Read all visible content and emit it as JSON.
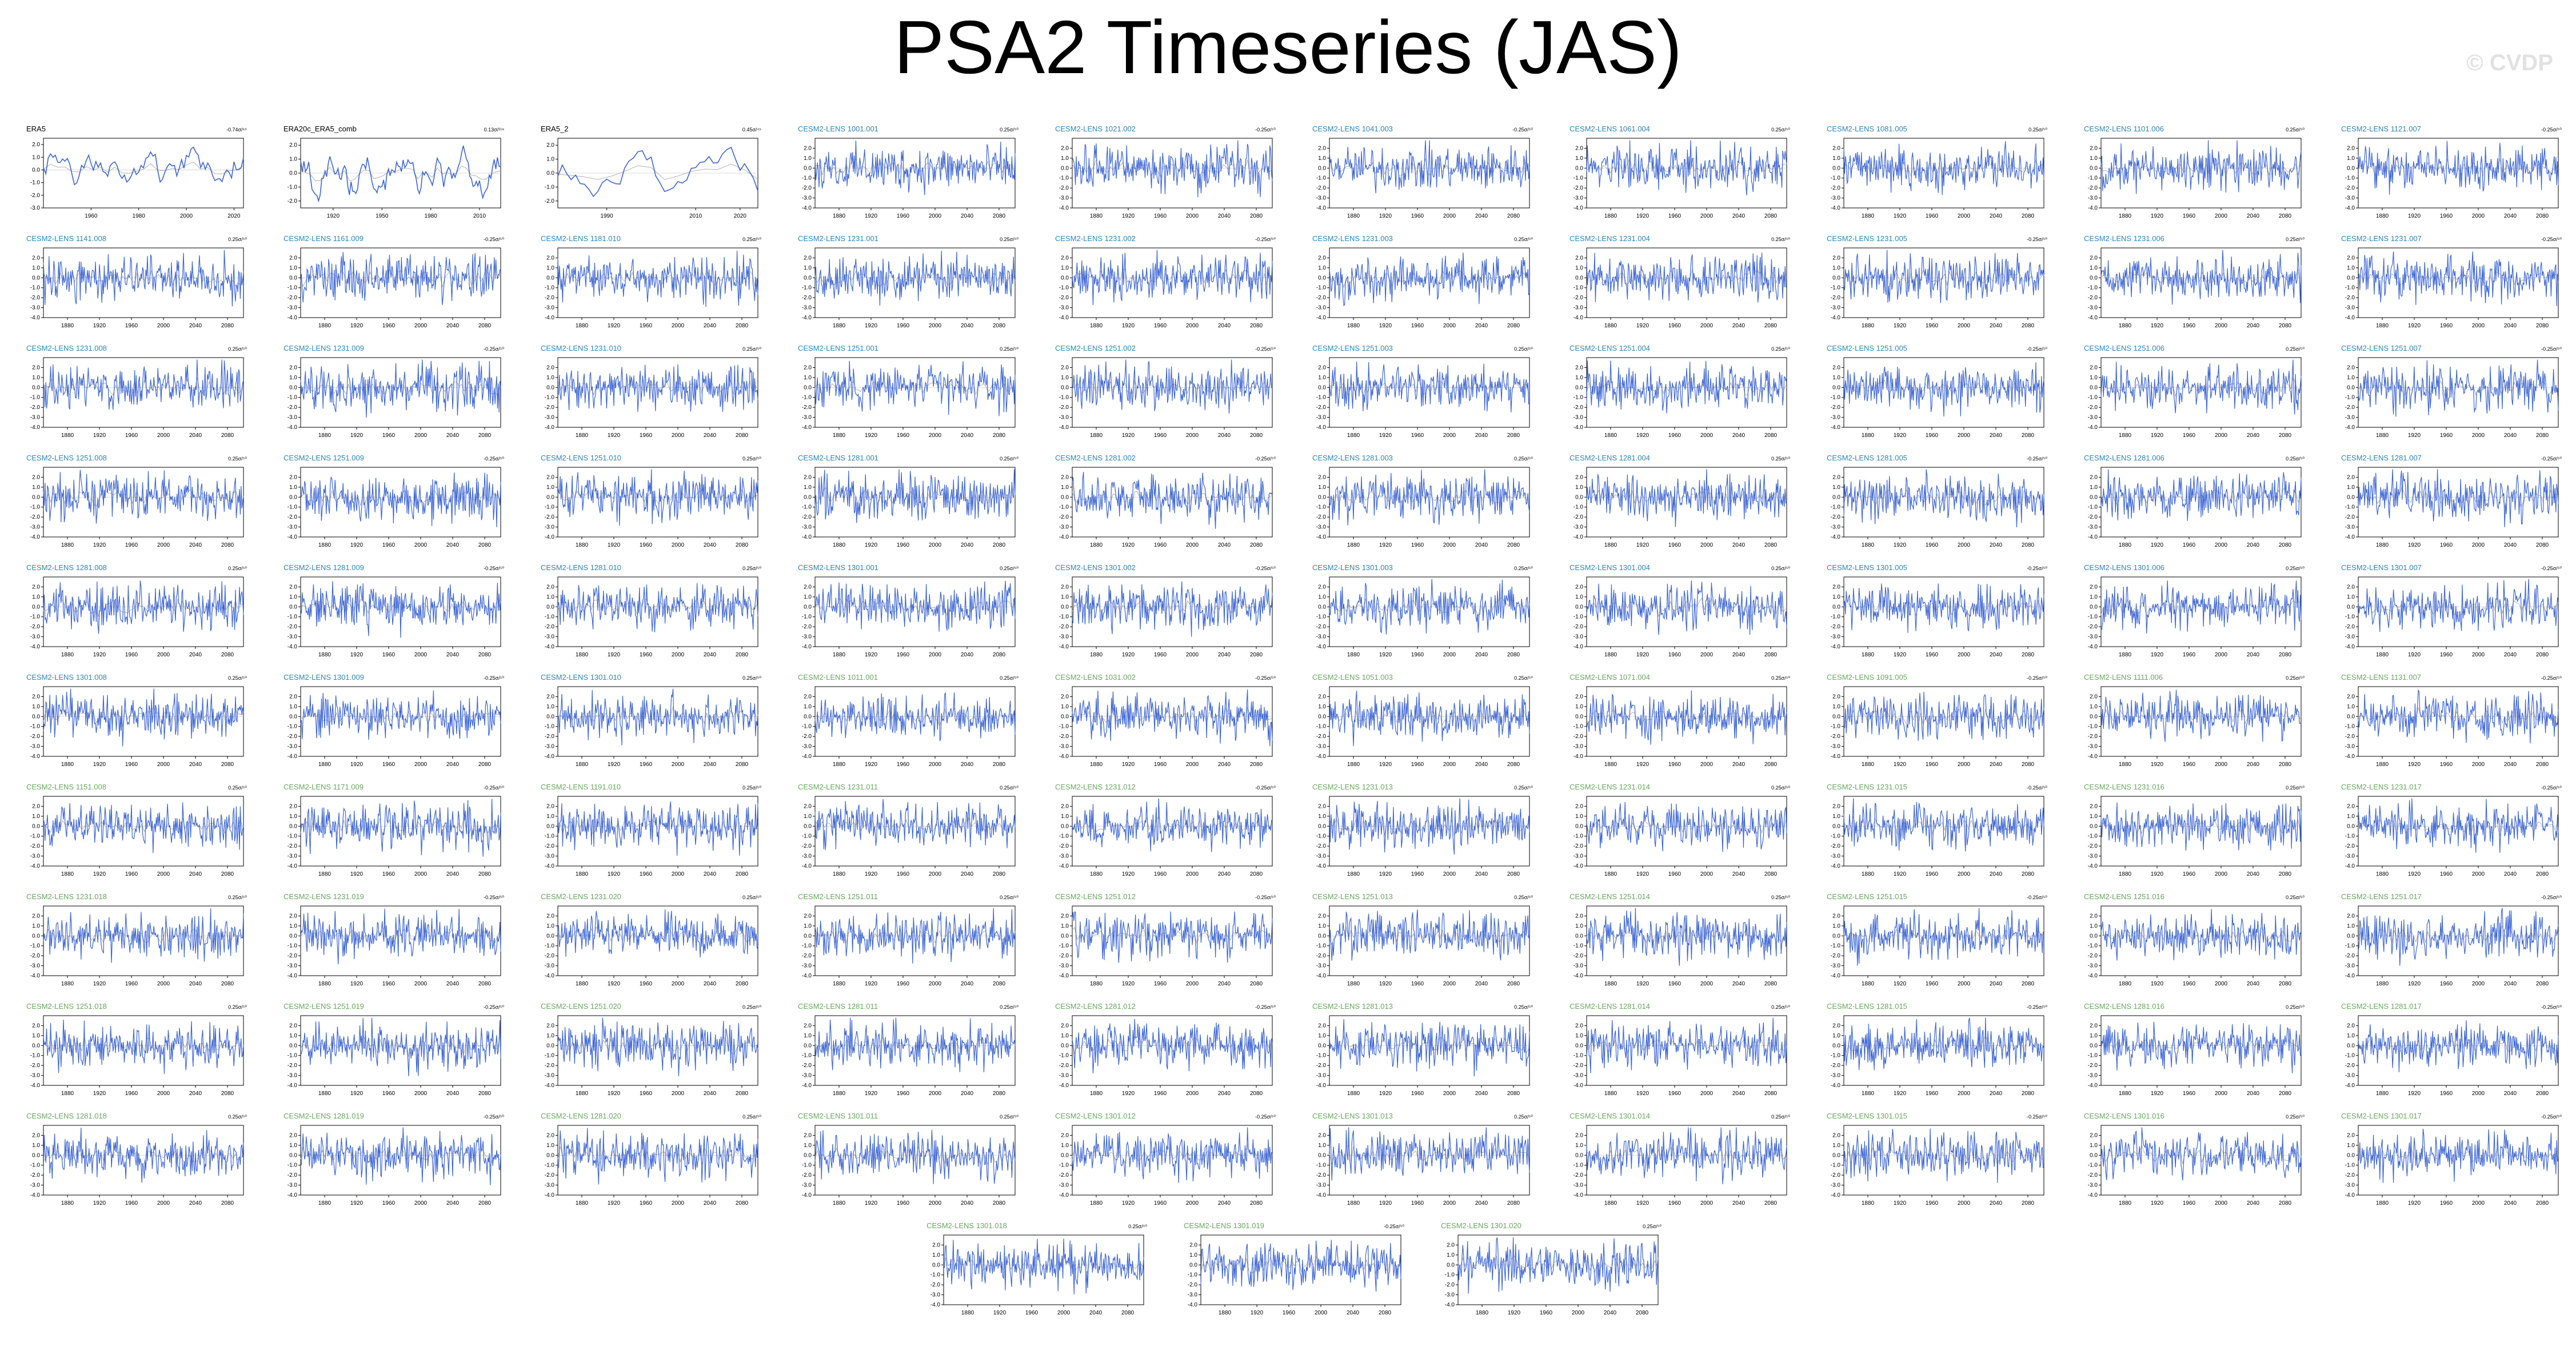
{
  "title": "PSA2 Timeseries (JAS)",
  "watermark": "© CVDP",
  "colors": {
    "series": "#3d66d6",
    "trend": "#aaaaaa",
    "obs_title": "#000000",
    "member_title_blue": "#2e86b8",
    "member_title_green": "#6aa860"
  },
  "chart_data": [
    {
      "type": "line",
      "title": "ERA5",
      "trend_label": "-0.74σ/⁶⁵",
      "title_color": "obs",
      "x_range": [
        1940,
        2024
      ],
      "ylim": [
        -3,
        2.5
      ],
      "xticks": [
        1960,
        1980,
        2000,
        2020
      ],
      "yticks": [
        "2.0",
        "1.0",
        "0.0",
        "-1.0",
        "-2.0",
        "-3.0"
      ],
      "n_points": 85,
      "smooth": true,
      "seed": 1
    },
    {
      "type": "line",
      "title": "ERA20c_ERA5_comb",
      "trend_label": "0.13σ/¹¹⁸",
      "title_color": "obs",
      "x_range": [
        1900,
        2023
      ],
      "ylim": [
        -2.5,
        2.5
      ],
      "xticks": [
        1920,
        1950,
        1980,
        2010
      ],
      "yticks": [
        "2.0",
        "1.0",
        "0.0",
        "-1.0",
        "-2.0"
      ],
      "n_points": 124,
      "smooth": true,
      "seed": 2
    },
    {
      "type": "line",
      "title": "ERA5_2",
      "trend_label": "0.45σ/⁴⁵",
      "title_color": "obs",
      "x_range": [
        1979,
        2024
      ],
      "ylim": [
        -2.5,
        2.5
      ],
      "xticks": [
        1990,
        2010,
        2020
      ],
      "yticks": [
        "2.0",
        "1.0",
        "0.0",
        "-1.0",
        "-2.0"
      ],
      "n_points": 46,
      "smooth": true,
      "seed": 3
    },
    {
      "title": "CESM2-LENS 1001.001",
      "trend_label": "0.25σ/⁵⁰",
      "title_color": "blue",
      "seed": 4
    },
    {
      "title": "CESM2-LENS 1021.002",
      "trend_label": "-0.25σ/⁵⁰",
      "title_color": "blue",
      "seed": 5
    },
    {
      "title": "CESM2-LENS 1041.003",
      "trend_label": "-0.25σ/⁵⁰",
      "title_color": "blue",
      "seed": 6
    },
    {
      "title": "CESM2-LENS 1061.004",
      "trend_label": "0.25σ/⁵⁰",
      "title_color": "blue",
      "seed": 7
    },
    {
      "title": "CESM2-LENS 1081.005",
      "trend_label": "0.25σ/⁵⁰",
      "title_color": "blue",
      "seed": 8
    },
    {
      "title": "CESM2-LENS 1101.006",
      "trend_label": "0.25σ/⁵⁰",
      "title_color": "blue",
      "seed": 9
    },
    {
      "title": "CESM2-LENS 1121.007",
      "trend_label": "-0.25σ/⁵⁰",
      "title_color": "blue",
      "seed": 10
    },
    {
      "title": "CESM2-LENS 1141.008",
      "trend_label": "0.25σ/⁵⁰",
      "title_color": "blue",
      "seed": 11
    },
    {
      "title": "CESM2-LENS 1161.009",
      "trend_label": "-0.25σ/⁵⁰",
      "title_color": "blue",
      "seed": 12
    },
    {
      "title": "CESM2-LENS 1181.010",
      "trend_label": "0.25σ/⁵⁰",
      "title_color": "blue",
      "seed": 13
    },
    {
      "title": "CESM2-LENS 1231.001",
      "trend_label": "0.25σ/⁵⁰",
      "title_color": "blue",
      "seed": 14
    },
    {
      "title": "CESM2-LENS 1231.002",
      "trend_label": "-0.25σ/⁵⁰",
      "title_color": "blue",
      "seed": 15
    },
    {
      "title": "CESM2-LENS 1231.003",
      "trend_label": "0.25σ/⁵⁰",
      "title_color": "blue",
      "seed": 16
    },
    {
      "title": "CESM2-LENS 1231.004",
      "trend_label": "0.25σ/⁵⁰",
      "title_color": "blue",
      "seed": 17
    },
    {
      "title": "CESM2-LENS 1231.005",
      "trend_label": "-0.25σ/⁵⁰",
      "title_color": "blue",
      "seed": 18
    },
    {
      "title": "CESM2-LENS 1231.006",
      "trend_label": "0.25σ/⁵⁰",
      "title_color": "blue",
      "seed": 19
    },
    {
      "title": "CESM2-LENS 1231.007",
      "trend_label": "-0.25σ/⁵⁰",
      "title_color": "blue",
      "seed": 20
    },
    {
      "title": "CESM2-LENS 1231.008",
      "trend_label": "0.25σ/⁵⁰",
      "title_color": "blue",
      "seed": 21
    },
    {
      "title": "CESM2-LENS 1231.009",
      "trend_label": "-0.25σ/⁵⁰",
      "title_color": "blue",
      "seed": 22
    },
    {
      "title": "CESM2-LENS 1231.010",
      "trend_label": "0.25σ/⁵⁰",
      "title_color": "blue",
      "seed": 23
    },
    {
      "title": "CESM2-LENS 1251.001",
      "trend_label": "0.25σ/⁵⁰",
      "title_color": "blue",
      "seed": 24
    },
    {
      "title": "CESM2-LENS 1251.002",
      "trend_label": "-0.25σ/⁵⁰",
      "title_color": "blue",
      "seed": 25
    },
    {
      "title": "CESM2-LENS 1251.003",
      "trend_label": "0.25σ/⁵⁰",
      "title_color": "blue",
      "seed": 26
    },
    {
      "title": "CESM2-LENS 1251.004",
      "trend_label": "0.25σ/⁵⁰",
      "title_color": "blue",
      "seed": 27
    },
    {
      "title": "CESM2-LENS 1251.005",
      "trend_label": "-0.25σ/⁵⁰",
      "title_color": "blue",
      "seed": 28
    },
    {
      "title": "CESM2-LENS 1251.006",
      "trend_label": "0.25σ/⁵⁰",
      "title_color": "blue",
      "seed": 29
    },
    {
      "title": "CESM2-LENS 1251.007",
      "trend_label": "-0.25σ/⁵⁰",
      "title_color": "blue",
      "seed": 30
    },
    {
      "title": "CESM2-LENS 1251.008",
      "trend_label": "0.25σ/⁵⁰",
      "title_color": "blue",
      "seed": 31
    },
    {
      "title": "CESM2-LENS 1251.009",
      "trend_label": "-0.25σ/⁵⁰",
      "title_color": "blue",
      "seed": 32
    },
    {
      "title": "CESM2-LENS 1251.010",
      "trend_label": "0.25σ/⁵⁰",
      "title_color": "blue",
      "seed": 33
    },
    {
      "title": "CESM2-LENS 1281.001",
      "trend_label": "0.25σ/⁵⁰",
      "title_color": "blue",
      "seed": 34
    },
    {
      "title": "CESM2-LENS 1281.002",
      "trend_label": "-0.25σ/⁵⁰",
      "title_color": "blue",
      "seed": 35
    },
    {
      "title": "CESM2-LENS 1281.003",
      "trend_label": "0.25σ/⁵⁰",
      "title_color": "blue",
      "seed": 36
    },
    {
      "title": "CESM2-LENS 1281.004",
      "trend_label": "0.25σ/⁵⁰",
      "title_color": "blue",
      "seed": 37
    },
    {
      "title": "CESM2-LENS 1281.005",
      "trend_label": "-0.25σ/⁵⁰",
      "title_color": "blue",
      "seed": 38
    },
    {
      "title": "CESM2-LENS 1281.006",
      "trend_label": "0.25σ/⁵⁰",
      "title_color": "blue",
      "seed": 39
    },
    {
      "title": "CESM2-LENS 1281.007",
      "trend_label": "-0.25σ/⁵⁰",
      "title_color": "blue",
      "seed": 40
    },
    {
      "title": "CESM2-LENS 1281.008",
      "trend_label": "0.25σ/⁵⁰",
      "title_color": "blue",
      "seed": 41
    },
    {
      "title": "CESM2-LENS 1281.009",
      "trend_label": "-0.25σ/⁵⁰",
      "title_color": "blue",
      "seed": 42
    },
    {
      "title": "CESM2-LENS 1281.010",
      "trend_label": "0.25σ/⁵⁰",
      "title_color": "blue",
      "seed": 43
    },
    {
      "title": "CESM2-LENS 1301.001",
      "trend_label": "0.25σ/⁵⁰",
      "title_color": "blue",
      "seed": 44
    },
    {
      "title": "CESM2-LENS 1301.002",
      "trend_label": "-0.25σ/⁵⁰",
      "title_color": "blue",
      "seed": 45
    },
    {
      "title": "CESM2-LENS 1301.003",
      "trend_label": "0.25σ/⁵⁰",
      "title_color": "blue",
      "seed": 46
    },
    {
      "title": "CESM2-LENS 1301.004",
      "trend_label": "0.25σ/⁵⁰",
      "title_color": "blue",
      "seed": 47
    },
    {
      "title": "CESM2-LENS 1301.005",
      "trend_label": "-0.25σ/⁵⁰",
      "title_color": "blue",
      "seed": 48
    },
    {
      "title": "CESM2-LENS 1301.006",
      "trend_label": "0.25σ/⁵⁰",
      "title_color": "blue",
      "seed": 49
    },
    {
      "title": "CESM2-LENS 1301.007",
      "trend_label": "-0.25σ/⁵⁰",
      "title_color": "blue",
      "seed": 50
    },
    {
      "title": "CESM2-LENS 1301.008",
      "trend_label": "0.25σ/⁵⁰",
      "title_color": "blue",
      "seed": 51
    },
    {
      "title": "CESM2-LENS 1301.009",
      "trend_label": "-0.25σ/⁵⁰",
      "title_color": "blue",
      "seed": 52
    },
    {
      "title": "CESM2-LENS 1301.010",
      "trend_label": "0.25σ/⁵⁰",
      "title_color": "blue",
      "seed": 53
    },
    {
      "title": "CESM2-LENS 1011.001",
      "trend_label": "0.25σ/⁵⁰",
      "title_color": "green",
      "seed": 54
    },
    {
      "title": "CESM2-LENS 1031.002",
      "trend_label": "-0.25σ/⁵⁰",
      "title_color": "green",
      "seed": 55
    },
    {
      "title": "CESM2-LENS 1051.003",
      "trend_label": "0.25σ/⁵⁰",
      "title_color": "green",
      "seed": 56
    },
    {
      "title": "CESM2-LENS 1071.004",
      "trend_label": "0.25σ/⁵⁰",
      "title_color": "green",
      "seed": 57
    },
    {
      "title": "CESM2-LENS 1091.005",
      "trend_label": "-0.25σ/⁵⁰",
      "title_color": "green",
      "seed": 58
    },
    {
      "title": "CESM2-LENS 1111.006",
      "trend_label": "0.25σ/⁵⁰",
      "title_color": "green",
      "seed": 59
    },
    {
      "title": "CESM2-LENS 1131.007",
      "trend_label": "-0.25σ/⁵⁰",
      "title_color": "green",
      "seed": 60
    },
    {
      "title": "CESM2-LENS 1151.008",
      "trend_label": "0.25σ/⁵⁰",
      "title_color": "green",
      "seed": 61
    },
    {
      "title": "CESM2-LENS 1171.009",
      "trend_label": "-0.25σ/⁵⁰",
      "title_color": "green",
      "seed": 62
    },
    {
      "title": "CESM2-LENS 1191.010",
      "trend_label": "0.25σ/⁵⁰",
      "title_color": "green",
      "seed": 63
    },
    {
      "title": "CESM2-LENS 1231.011",
      "trend_label": "0.25σ/⁵⁰",
      "title_color": "green",
      "seed": 64
    },
    {
      "title": "CESM2-LENS 1231.012",
      "trend_label": "-0.25σ/⁵⁰",
      "title_color": "green",
      "seed": 65
    },
    {
      "title": "CESM2-LENS 1231.013",
      "trend_label": "0.25σ/⁵⁰",
      "title_color": "green",
      "seed": 66
    },
    {
      "title": "CESM2-LENS 1231.014",
      "trend_label": "0.25σ/⁵⁰",
      "title_color": "green",
      "seed": 67
    },
    {
      "title": "CESM2-LENS 1231.015",
      "trend_label": "-0.25σ/⁵⁰",
      "title_color": "green",
      "seed": 68
    },
    {
      "title": "CESM2-LENS 1231.016",
      "trend_label": "0.25σ/⁵⁰",
      "title_color": "green",
      "seed": 69
    },
    {
      "title": "CESM2-LENS 1231.017",
      "trend_label": "-0.25σ/⁵⁰",
      "title_color": "green",
      "seed": 70
    },
    {
      "title": "CESM2-LENS 1231.018",
      "trend_label": "0.25σ/⁵⁰",
      "title_color": "green",
      "seed": 71
    },
    {
      "title": "CESM2-LENS 1231.019",
      "trend_label": "-0.25σ/⁵⁰",
      "title_color": "green",
      "seed": 72
    },
    {
      "title": "CESM2-LENS 1231.020",
      "trend_label": "0.25σ/⁵⁰",
      "title_color": "green",
      "seed": 73
    },
    {
      "title": "CESM2-LENS 1251.011",
      "trend_label": "0.25σ/⁵⁰",
      "title_color": "green",
      "seed": 74
    },
    {
      "title": "CESM2-LENS 1251.012",
      "trend_label": "-0.25σ/⁵⁰",
      "title_color": "green",
      "seed": 75
    },
    {
      "title": "CESM2-LENS 1251.013",
      "trend_label": "0.25σ/⁵⁰",
      "title_color": "green",
      "seed": 76
    },
    {
      "title": "CESM2-LENS 1251.014",
      "trend_label": "0.25σ/⁵⁰",
      "title_color": "green",
      "seed": 77
    },
    {
      "title": "CESM2-LENS 1251.015",
      "trend_label": "-0.25σ/⁵⁰",
      "title_color": "green",
      "seed": 78
    },
    {
      "title": "CESM2-LENS 1251.016",
      "trend_label": "0.25σ/⁵⁰",
      "title_color": "green",
      "seed": 79
    },
    {
      "title": "CESM2-LENS 1251.017",
      "trend_label": "-0.25σ/⁵⁰",
      "title_color": "green",
      "seed": 80
    },
    {
      "title": "CESM2-LENS 1251.018",
      "trend_label": "0.25σ/⁵⁰",
      "title_color": "green",
      "seed": 81
    },
    {
      "title": "CESM2-LENS 1251.019",
      "trend_label": "-0.25σ/⁵⁰",
      "title_color": "green",
      "seed": 82
    },
    {
      "title": "CESM2-LENS 1251.020",
      "trend_label": "0.25σ/⁵⁰",
      "title_color": "green",
      "seed": 83
    },
    {
      "title": "CESM2-LENS 1281.011",
      "trend_label": "0.25σ/⁵⁰",
      "title_color": "green",
      "seed": 84
    },
    {
      "title": "CESM2-LENS 1281.012",
      "trend_label": "-0.25σ/⁵⁰",
      "title_color": "green",
      "seed": 85
    },
    {
      "title": "CESM2-LENS 1281.013",
      "trend_label": "0.25σ/⁵⁰",
      "title_color": "green",
      "seed": 86
    },
    {
      "title": "CESM2-LENS 1281.014",
      "trend_label": "0.25σ/⁵⁰",
      "title_color": "green",
      "seed": 87
    },
    {
      "title": "CESM2-LENS 1281.015",
      "trend_label": "-0.25σ/⁵⁰",
      "title_color": "green",
      "seed": 88
    },
    {
      "title": "CESM2-LENS 1281.016",
      "trend_label": "0.25σ/⁵⁰",
      "title_color": "green",
      "seed": 89
    },
    {
      "title": "CESM2-LENS 1281.017",
      "trend_label": "-0.25σ/⁵⁰",
      "title_color": "green",
      "seed": 90
    },
    {
      "title": "CESM2-LENS 1281.018",
      "trend_label": "0.25σ/⁵⁰",
      "title_color": "green",
      "seed": 91
    },
    {
      "title": "CESM2-LENS 1281.019",
      "trend_label": "-0.25σ/⁵⁰",
      "title_color": "green",
      "seed": 92
    },
    {
      "title": "CESM2-LENS 1281.020",
      "trend_label": "0.25σ/⁵⁰",
      "title_color": "green",
      "seed": 93
    },
    {
      "title": "CESM2-LENS 1301.011",
      "trend_label": "0.25σ/⁵⁰",
      "title_color": "green",
      "seed": 94
    },
    {
      "title": "CESM2-LENS 1301.012",
      "trend_label": "-0.25σ/⁵⁰",
      "title_color": "green",
      "seed": 95
    },
    {
      "title": "CESM2-LENS 1301.013",
      "trend_label": "0.25σ/⁵⁰",
      "title_color": "green",
      "seed": 96
    },
    {
      "title": "CESM2-LENS 1301.014",
      "trend_label": "0.25σ/⁵⁰",
      "title_color": "green",
      "seed": 97
    },
    {
      "title": "CESM2-LENS 1301.015",
      "trend_label": "-0.25σ/⁵⁰",
      "title_color": "green",
      "seed": 98
    },
    {
      "title": "CESM2-LENS 1301.016",
      "trend_label": "0.25σ/⁵⁰",
      "title_color": "green",
      "seed": 99
    },
    {
      "title": "CESM2-LENS 1301.017",
      "trend_label": "-0.25σ/⁵⁰",
      "title_color": "green",
      "seed": 100
    },
    {
      "title": "CESM2-LENS 1301.018",
      "trend_label": "0.25σ/⁵⁰",
      "title_color": "green",
      "seed": 101
    },
    {
      "title": "CESM2-LENS 1301.019",
      "trend_label": "-0.25σ/⁵⁰",
      "title_color": "green",
      "seed": 102
    },
    {
      "title": "CESM2-LENS 1301.020",
      "trend_label": "0.25σ/⁵⁰",
      "title_color": "green",
      "seed": 103
    }
  ],
  "member_defaults": {
    "type": "line",
    "x_range": [
      1850,
      2100
    ],
    "ylim": [
      -4,
      3
    ],
    "xticks": [
      1880,
      1920,
      1960,
      2000,
      2040,
      2080
    ],
    "yticks": [
      "2.0",
      "1.0",
      "0.0",
      "-1.0",
      "-2.0",
      "-3.0",
      "-4.0"
    ],
    "n_points": 251,
    "smooth": false
  }
}
